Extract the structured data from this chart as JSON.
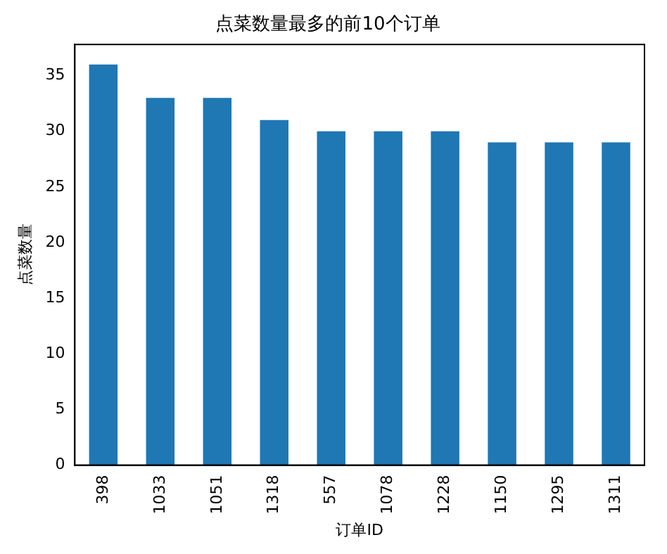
{
  "chart_data": {
    "type": "bar",
    "title": "点菜数量最多的前10个订单",
    "xlabel": "订单ID",
    "ylabel": "点菜数量",
    "categories": [
      "398",
      "1033",
      "1051",
      "1318",
      "557",
      "1078",
      "1228",
      "1150",
      "1295",
      "1311"
    ],
    "values": [
      36,
      33,
      33,
      31,
      30,
      30,
      30,
      29,
      29,
      29
    ],
    "color": "#1f77b4",
    "ylim": [
      0,
      37.8
    ],
    "yticks": [
      0,
      5,
      10,
      15,
      20,
      25,
      30,
      35
    ],
    "grid": false,
    "legend": false
  }
}
